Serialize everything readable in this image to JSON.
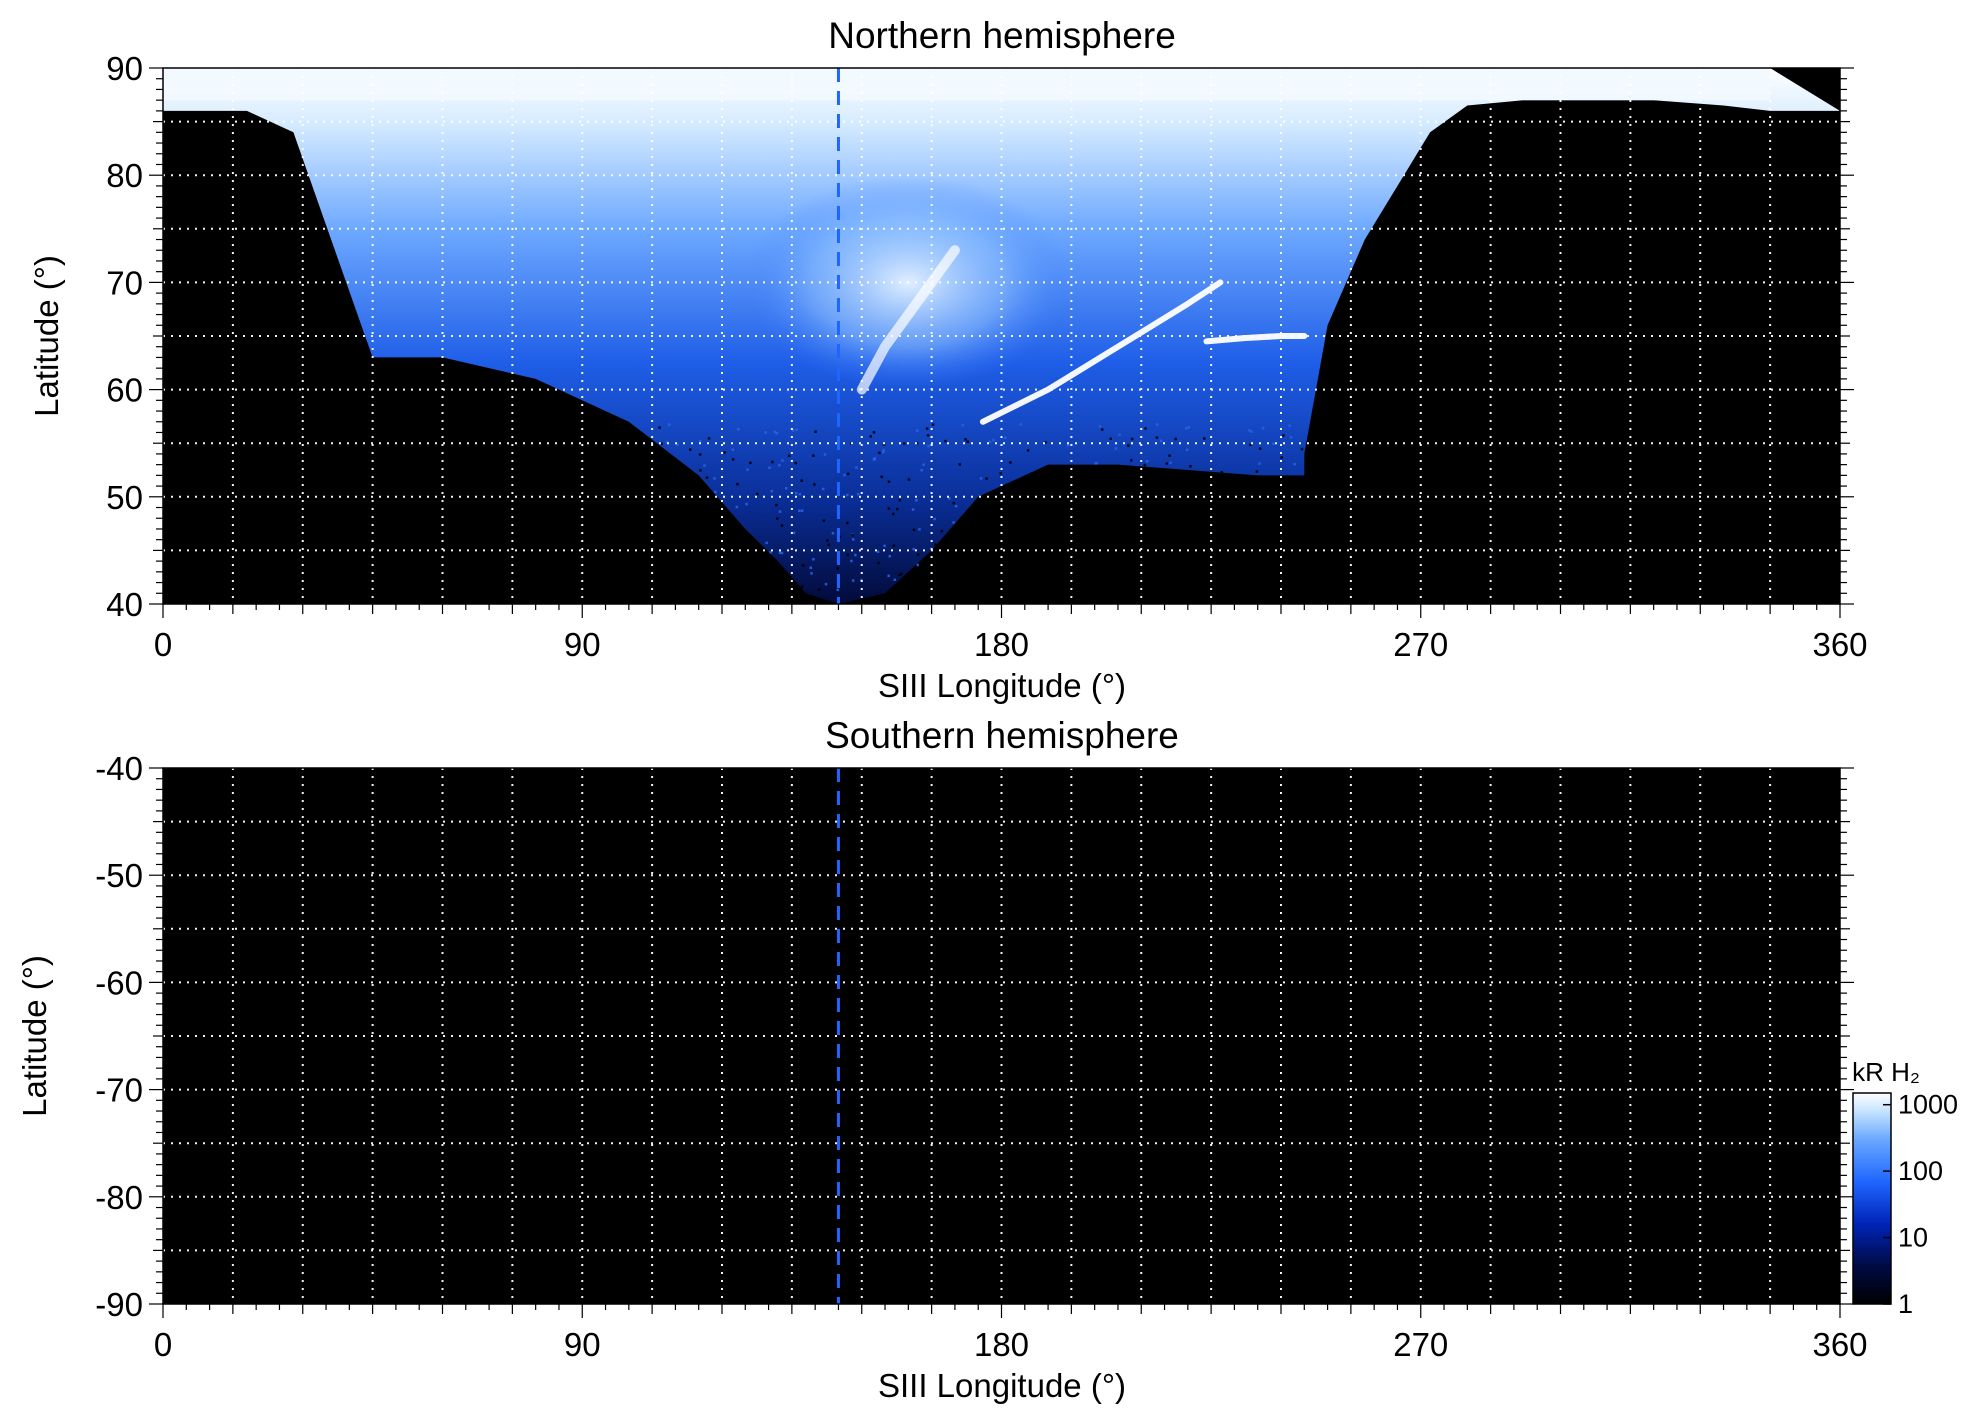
{
  "figure": {
    "colors": {
      "background": "#ffffff",
      "plot_background": "#000000",
      "grid": "#ffffff",
      "frame": "#000000",
      "reference_line": "#1f66ff"
    },
    "colorbar": {
      "label": "kR H₂",
      "ticks": [
        "1000",
        "100",
        "10",
        "1"
      ],
      "tick_values": [
        1000,
        100,
        10,
        1
      ],
      "scale": "log",
      "range": [
        1,
        1500
      ],
      "colors": [
        "#000000",
        "#000b44",
        "#0024b8",
        "#1f66ff",
        "#6ba8ff",
        "#c9e6ff",
        "#ffffff"
      ]
    }
  },
  "chart_data": [
    {
      "type": "heatmap",
      "title": "Northern hemisphere",
      "xlabel": "SIII Longitude (°)",
      "ylabel": "Latitude (°)",
      "xlim": [
        0,
        360
      ],
      "ylim": [
        40,
        90
      ],
      "xticks": [
        "0",
        "90",
        "180",
        "270",
        "360"
      ],
      "xtick_values": [
        0,
        90,
        180,
        270,
        360
      ],
      "yticks": [
        "90",
        "80",
        "70",
        "60",
        "50",
        "40"
      ],
      "ytick_values": [
        90,
        80,
        70,
        60,
        50,
        40
      ],
      "x_grid_step": 15,
      "y_grid_step": 5,
      "grid": true,
      "reference_line_longitude": 145,
      "emission_region": {
        "description_units": "longitude, latitude",
        "upper_band_longitude": [
          0,
          345
        ],
        "equatorward_edge": {
          "longitude": [
            0,
            18,
            28,
            45,
            60,
            80,
            100,
            115,
            125,
            132,
            138,
            145,
            155,
            165,
            175,
            190,
            205,
            220,
            235,
            242,
            245
          ],
          "latitude": [
            86,
            86,
            84,
            63,
            63,
            61,
            57,
            52,
            47,
            44,
            41,
            40,
            41,
            45,
            50,
            53,
            53,
            52.5,
            52,
            52,
            52
          ]
        },
        "poleward_open_edge": {
          "longitude": [
            245,
            250,
            258,
            265,
            272,
            280,
            292,
            305,
            320,
            335,
            345,
            360
          ],
          "latitude": [
            54,
            66,
            74,
            79,
            84,
            86.5,
            87,
            87,
            87,
            86.5,
            86,
            86
          ]
        },
        "arcs": [
          {
            "longitude": [
              176,
              190,
              205,
              220,
              227
            ],
            "latitude": [
              57,
              60,
              64,
              68,
              70
            ],
            "brightness_kR": 1000
          },
          {
            "longitude": [
              224,
              232,
              240,
              245
            ],
            "latitude": [
              64.5,
              64.8,
              65,
              65
            ],
            "brightness_kR": 1000
          },
          {
            "longitude": [
              150,
              155,
              160,
              165,
              170
            ],
            "latitude": [
              60,
              64,
              67,
              70,
              73
            ],
            "brightness_kR": 700
          }
        ]
      }
    },
    {
      "type": "heatmap",
      "title": "Southern hemisphere",
      "xlabel": "SIII Longitude (°)",
      "ylabel": "Latitude (°)",
      "xlim": [
        0,
        360
      ],
      "ylim": [
        -90,
        -40
      ],
      "xticks": [
        "0",
        "90",
        "180",
        "270",
        "360"
      ],
      "xtick_values": [
        0,
        90,
        180,
        270,
        360
      ],
      "yticks": [
        "-40",
        "-50",
        "-60",
        "-70",
        "-80",
        "-90"
      ],
      "ytick_values": [
        -40,
        -50,
        -60,
        -70,
        -80,
        -90
      ],
      "x_grid_step": 15,
      "y_grid_step": 5,
      "grid": true,
      "reference_line_longitude": 145,
      "emission_region": null
    }
  ]
}
